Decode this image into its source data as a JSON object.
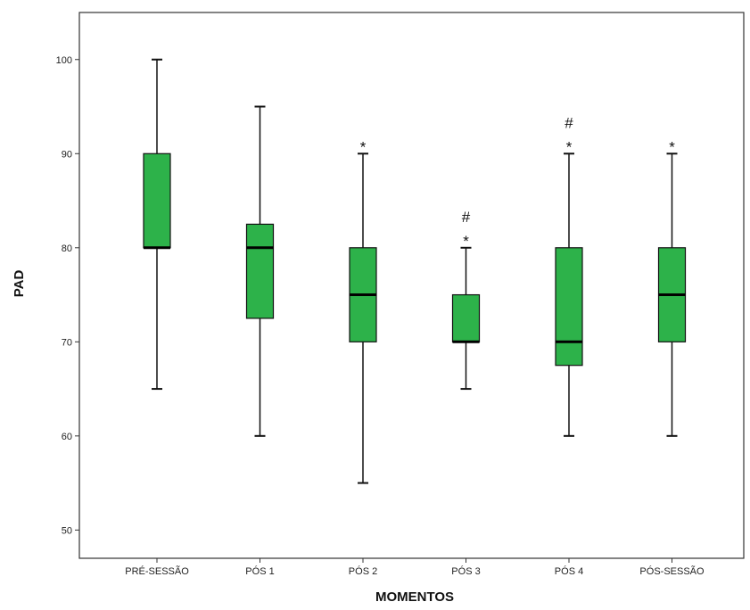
{
  "chart_data": {
    "type": "boxplot",
    "xlabel": "MOMENTOS",
    "ylabel": "PAD",
    "ylim": [
      47,
      105
    ],
    "yticks": [
      50,
      60,
      70,
      80,
      90,
      100
    ],
    "grid": false,
    "box_color": "#2db24a",
    "categories": [
      "PRÉ-SESSÃO",
      "PÓS 1",
      "PÓS 2",
      "PÓS 3",
      "PÓS 4",
      "PÓS-SESSÃO"
    ],
    "boxes": [
      {
        "category": "PRÉ-SESSÃO",
        "min": 65,
        "q1": 80,
        "median": 80,
        "q3": 90,
        "max": 100,
        "annotations": []
      },
      {
        "category": "PÓS 1",
        "min": 60,
        "q1": 72.5,
        "median": 80,
        "q3": 82.5,
        "max": 95,
        "annotations": []
      },
      {
        "category": "PÓS 2",
        "min": 55,
        "q1": 70,
        "median": 75,
        "q3": 80,
        "max": 90,
        "annotations": [
          "*"
        ]
      },
      {
        "category": "PÓS 3",
        "min": 65,
        "q1": 70,
        "median": 70,
        "q3": 75,
        "max": 80,
        "annotations": [
          "#",
          "*"
        ]
      },
      {
        "category": "PÓS 4",
        "min": 60,
        "q1": 67.5,
        "median": 70,
        "q3": 80,
        "max": 90,
        "annotations": [
          "#",
          "*"
        ]
      },
      {
        "category": "PÓS-SESSÃO",
        "min": 60,
        "q1": 70,
        "median": 75,
        "q3": 80,
        "max": 90,
        "annotations": [
          "*"
        ]
      }
    ]
  }
}
